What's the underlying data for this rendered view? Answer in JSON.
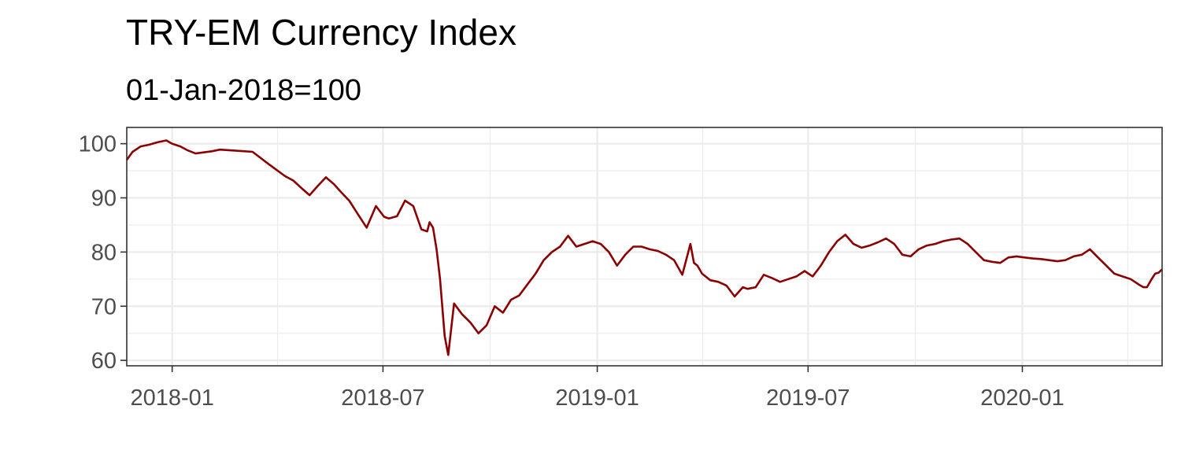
{
  "chart_data": {
    "type": "line",
    "title": "TRY-EM Currency Index",
    "subtitle": "01-Jan-2018=100",
    "xlabel": "",
    "ylabel": "",
    "x_start": "2017-11-23",
    "x_end": "2020-04-30",
    "ylim": [
      59,
      103
    ],
    "x_ticks": [
      "2018-01-01",
      "2018-07-01",
      "2019-01-01",
      "2019-07-01",
      "2020-01-01"
    ],
    "x_tick_labels": [
      "2018-01",
      "2018-07",
      "2019-01",
      "2019-07",
      "2020-01"
    ],
    "y_ticks": [
      60,
      70,
      80,
      90,
      100
    ],
    "y_tick_labels": [
      "60",
      "70",
      "80",
      "90",
      "100"
    ],
    "grid": true,
    "line_color": "#8b0000",
    "series": [
      {
        "name": "",
        "x": [
          "2017-11-23",
          "2017-11-28",
          "2017-12-05",
          "2017-12-12",
          "2017-12-20",
          "2017-12-27",
          "2018-01-01",
          "2018-01-08",
          "2018-01-14",
          "2018-01-21",
          "2018-01-28",
          "2018-02-04",
          "2018-02-11",
          "2018-02-25",
          "2018-03-11",
          "2018-03-25",
          "2018-04-08",
          "2018-04-15",
          "2018-04-22",
          "2018-04-29",
          "2018-05-06",
          "2018-05-13",
          "2018-05-20",
          "2018-05-25",
          "2018-06-02",
          "2018-06-10",
          "2018-06-17",
          "2018-06-25",
          "2018-07-02",
          "2018-07-06",
          "2018-07-13",
          "2018-07-20",
          "2018-07-27",
          "2018-08-03",
          "2018-08-08",
          "2018-08-10",
          "2018-08-13",
          "2018-08-16",
          "2018-08-19",
          "2018-08-23",
          "2018-08-26",
          "2018-08-31",
          "2018-09-07",
          "2018-09-14",
          "2018-09-21",
          "2018-09-28",
          "2018-10-05",
          "2018-10-12",
          "2018-10-19",
          "2018-10-26",
          "2018-11-02",
          "2018-11-09",
          "2018-11-16",
          "2018-11-23",
          "2018-11-30",
          "2018-12-07",
          "2018-12-14",
          "2018-12-21",
          "2018-12-28",
          "2019-01-04",
          "2019-01-11",
          "2019-01-18",
          "2019-01-25",
          "2019-02-01",
          "2019-02-08",
          "2019-02-15",
          "2019-02-22",
          "2019-03-01",
          "2019-03-08",
          "2019-03-15",
          "2019-03-22",
          "2019-03-25",
          "2019-03-28",
          "2019-04-01",
          "2019-04-08",
          "2019-04-15",
          "2019-04-22",
          "2019-04-29",
          "2019-05-06",
          "2019-05-10",
          "2019-05-17",
          "2019-05-24",
          "2019-05-31",
          "2019-06-07",
          "2019-06-14",
          "2019-06-21",
          "2019-06-28",
          "2019-07-05",
          "2019-07-12",
          "2019-07-19",
          "2019-07-26",
          "2019-08-02",
          "2019-08-09",
          "2019-08-16",
          "2019-08-23",
          "2019-08-30",
          "2019-09-06",
          "2019-09-13",
          "2019-09-20",
          "2019-09-27",
          "2019-10-04",
          "2019-10-11",
          "2019-10-18",
          "2019-10-25",
          "2019-11-01",
          "2019-11-08",
          "2019-11-15",
          "2019-11-22",
          "2019-11-29",
          "2019-12-06",
          "2019-12-13",
          "2019-12-20",
          "2019-12-27",
          "2020-01-03",
          "2020-01-10",
          "2020-01-17",
          "2020-01-24",
          "2020-01-31",
          "2020-02-07",
          "2020-02-14",
          "2020-02-21",
          "2020-02-28",
          "2020-03-06",
          "2020-03-13",
          "2020-03-20",
          "2020-03-27",
          "2020-04-03",
          "2020-04-10",
          "2020-04-14",
          "2020-04-17",
          "2020-04-21",
          "2020-04-24",
          "2020-04-27",
          "2020-04-30"
        ],
        "y": [
          97,
          98.5,
          99.5,
          99.8,
          100.3,
          100.6,
          100,
          99.5,
          98.8,
          98.2,
          98.4,
          98.6,
          98.9,
          98.7,
          98.5,
          96.2,
          94,
          93.2,
          91.8,
          90.5,
          92.2,
          93.8,
          92.5,
          91.3,
          89.5,
          86.8,
          84.5,
          88.5,
          86.5,
          86.2,
          86.6,
          89.5,
          88.5,
          84.2,
          83.8,
          85.5,
          84.5,
          80.5,
          75,
          64.5,
          61,
          70.5,
          68.5,
          67,
          65,
          66.5,
          70,
          68.8,
          71.2,
          72,
          74,
          76,
          78.5,
          80,
          81,
          83,
          81,
          81.5,
          82,
          81.5,
          80,
          77.5,
          79.5,
          81,
          81,
          80.5,
          80.2,
          79.5,
          78.5,
          75.8,
          81.5,
          78,
          77.5,
          76,
          74.8,
          74.5,
          73.8,
          71.8,
          73.5,
          73.2,
          73.5,
          75.8,
          75.2,
          74.5,
          75,
          75.5,
          76.5,
          75.5,
          77.5,
          80,
          82,
          83.2,
          81.5,
          80.8,
          81.2,
          81.8,
          82.5,
          81.5,
          79.5,
          79.2,
          80.5,
          81.2,
          81.5,
          82,
          82.3,
          82.5,
          81.5,
          80,
          78.5,
          78.2,
          78,
          79,
          79.2,
          79,
          78.8,
          78.7,
          78.5,
          78.3,
          78.5,
          79.2,
          79.5,
          80.5,
          79,
          77.5,
          76,
          75.5,
          75,
          74,
          73.5,
          73.5,
          75,
          76,
          76.2,
          76.8
        ]
      }
    ]
  }
}
